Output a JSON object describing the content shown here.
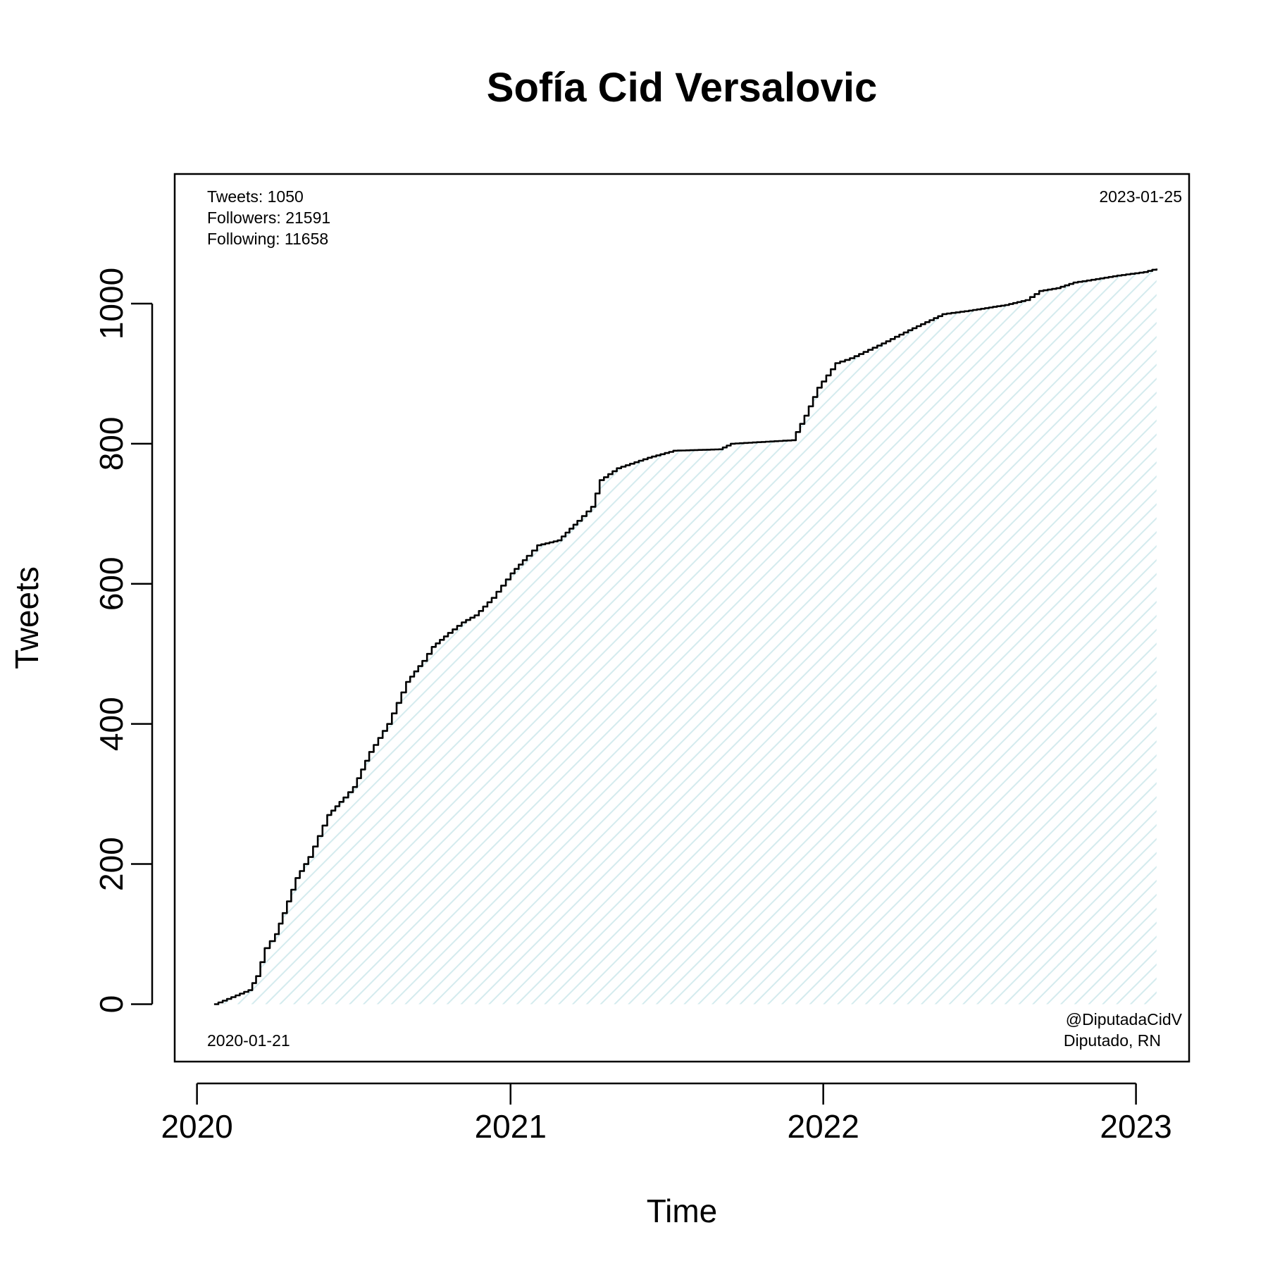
{
  "chart_data": {
    "type": "area",
    "title": "Sofía Cid Versalovic",
    "xlabel": "Time",
    "ylabel": "Tweets",
    "x_ticks": [
      "2020",
      "2021",
      "2022",
      "2023"
    ],
    "y_ticks": [
      0,
      200,
      400,
      600,
      800,
      1000
    ],
    "xlim": [
      "2019-12-06",
      "2023-03-04"
    ],
    "ylim": [
      -82,
      1185
    ],
    "grid": false,
    "fill_color": "#e6f3f5",
    "line_color": "#000000",
    "stats": {
      "tweets": "Tweets: 1050",
      "followers": "Followers: 21591",
      "following": "Following: 11658"
    },
    "start_label": "2020-01-21",
    "end_label": "2023-01-25",
    "handle": "@DiputadaCidV",
    "role": "Diputado, RN",
    "series": [
      {
        "x": [
          "2020-01-21",
          "2020-02-10",
          "2020-03-01",
          "2020-03-10",
          "2020-03-20",
          "2020-04-01",
          "2020-04-10",
          "2020-04-25",
          "2020-05-10",
          "2020-06-01",
          "2020-06-20",
          "2020-07-01",
          "2020-07-20",
          "2020-08-10",
          "2020-09-01",
          "2020-09-20",
          "2020-10-01",
          "2020-10-20",
          "2020-11-05",
          "2020-11-20",
          "2020-12-10",
          "2021-01-01",
          "2021-01-20",
          "2021-02-01",
          "2021-02-25",
          "2021-03-20",
          "2021-04-05",
          "2021-04-15",
          "2021-05-05",
          "2021-06-10",
          "2021-07-10",
          "2021-09-01",
          "2021-09-15",
          "2021-11-25",
          "2021-12-10",
          "2021-12-25",
          "2022-01-15",
          "2022-02-01",
          "2022-03-05",
          "2022-04-10",
          "2022-05-20",
          "2022-06-20",
          "2022-08-01",
          "2022-08-25",
          "2022-09-10",
          "2022-09-30",
          "2022-10-20",
          "2022-11-15",
          "2022-12-10",
          "2023-01-10",
          "2023-01-25"
        ],
        "y": [
          0,
          10,
          20,
          40,
          80,
          100,
          130,
          180,
          210,
          270,
          295,
          310,
          360,
          400,
          460,
          490,
          510,
          530,
          545,
          555,
          580,
          615,
          640,
          655,
          662,
          690,
          710,
          748,
          765,
          780,
          790,
          792,
          800,
          805,
          840,
          880,
          915,
          922,
          940,
          962,
          985,
          990,
          998,
          1005,
          1018,
          1022,
          1030,
          1035,
          1040,
          1045,
          1050
        ]
      }
    ]
  }
}
